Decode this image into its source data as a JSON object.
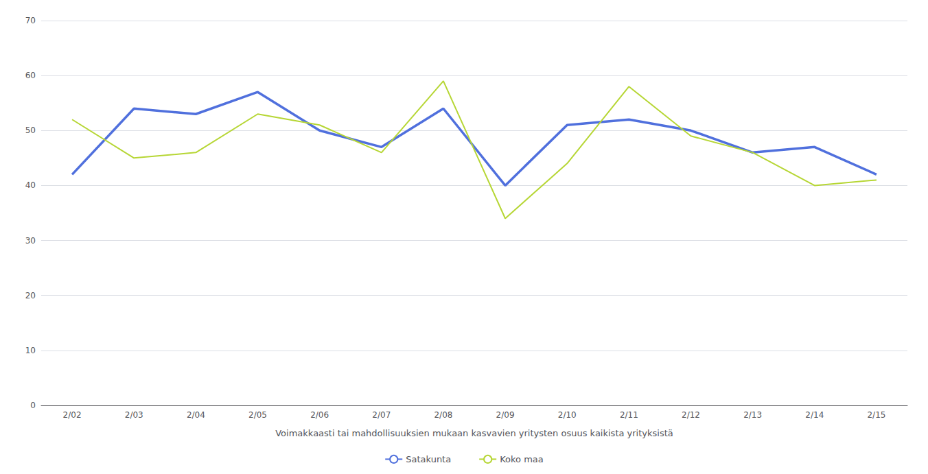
{
  "chart_data": {
    "type": "line",
    "xlabel": "Voimakkaasti tai mahdollisuuksien mukaan kasvavien yritysten osuus kaikista yrityksistä",
    "categories": [
      "2/02",
      "2/03",
      "2/04",
      "2/05",
      "2/06",
      "2/07",
      "2/08",
      "2/09",
      "2/10",
      "2/11",
      "2/12",
      "2/13",
      "2/14",
      "2/15"
    ],
    "series": [
      {
        "name": "Satakunta",
        "values": [
          42,
          54,
          53,
          57,
          50,
          47,
          54,
          40,
          51,
          52,
          50,
          46,
          47,
          42
        ]
      },
      {
        "name": "Koko maa",
        "values": [
          52,
          45,
          46,
          53,
          51,
          46,
          59,
          34,
          44,
          58,
          49,
          46,
          40,
          41
        ]
      }
    ],
    "ylim": [
      0,
      70
    ],
    "yticks": [
      0,
      10,
      20,
      30,
      40,
      50,
      60,
      70
    ],
    "grid": true,
    "legend": "bottom"
  }
}
